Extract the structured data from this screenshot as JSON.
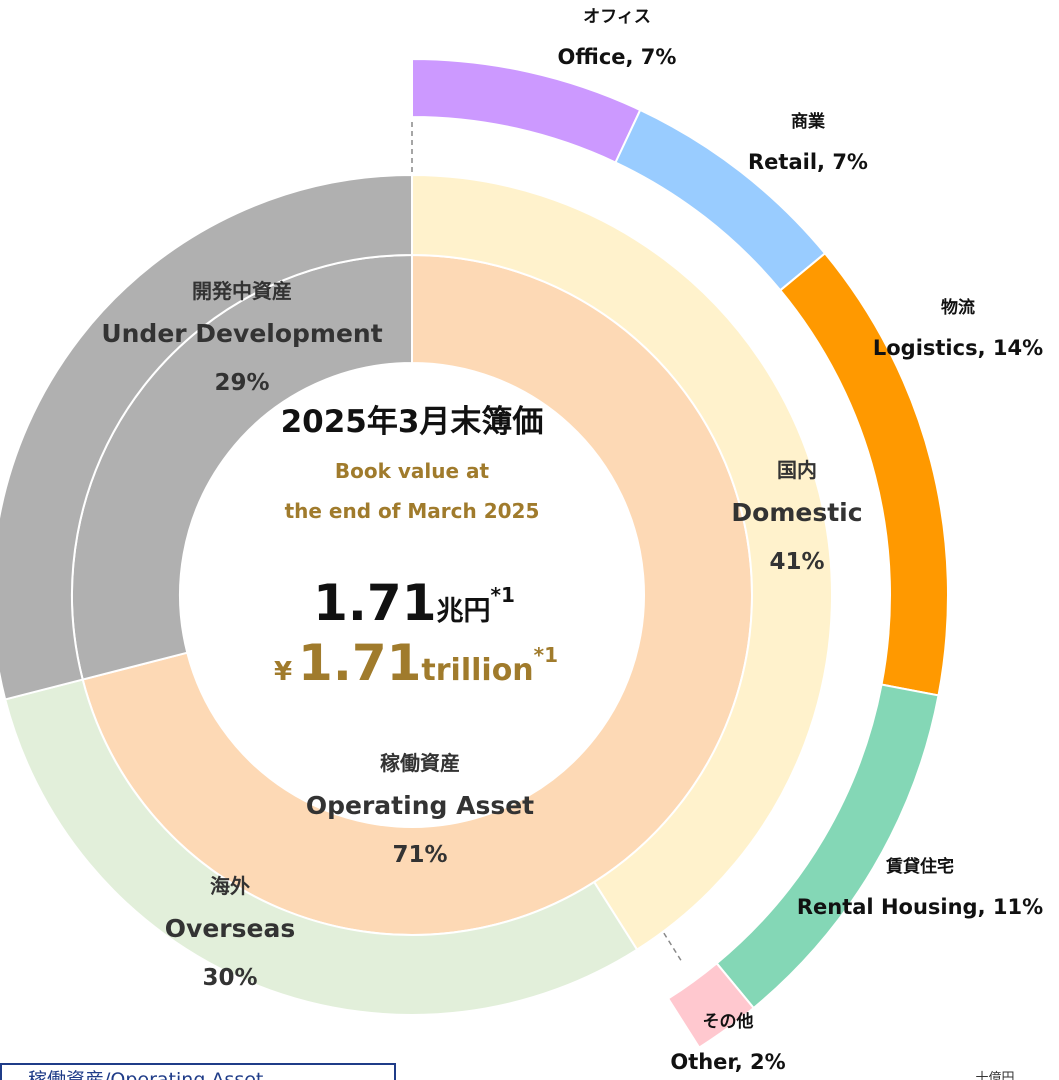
{
  "chart_data": {
    "type": "donut",
    "title": "2025年3月末簿価",
    "subtitle": [
      "Book value at",
      "the end of March 2025"
    ],
    "amount_ja": {
      "value": "1.71",
      "unit": "兆円",
      "note": "*1"
    },
    "amount_en": {
      "currency": "¥",
      "value": "1.71",
      "unit": "trillion",
      "note": "*1"
    },
    "rings": [
      {
        "names_ja": [
          "稼働資産",
          "開発中資産"
        ],
        "names_en": [
          "Operating Asset",
          "Under Development"
        ],
        "values": [
          71,
          29
        ],
        "value_labels": [
          "71%",
          "29%"
        ],
        "colors": [
          "#fdd9b5",
          "#b0b0b0"
        ]
      },
      {
        "names_ja": [
          "国内",
          "海外",
          null
        ],
        "names_en": [
          "Domestic",
          "Overseas",
          null
        ],
        "values": [
          41,
          30,
          29
        ],
        "value_labels": [
          "41%",
          "30%",
          null
        ],
        "colors": [
          "#fff2cc",
          "#e2efda",
          "#b0b0b0"
        ]
      },
      {
        "names_ja": [
          "オフィス",
          "商業",
          "物流",
          "賃貸住宅",
          "その他"
        ],
        "values": [
          7,
          7,
          14,
          11,
          2
        ],
        "value_labels": [
          "Office, 7%",
          "Retail, 7%",
          "Logistics, 14%",
          "Rental Housing, 11%",
          "Other, 2%"
        ],
        "colors": [
          "#cc99ff",
          "#99ccff",
          "#ff9900",
          "#84d7b6",
          "#ffc8cf"
        ]
      }
    ],
    "legend_box": "稼働資産/Operating Asset",
    "unit": "十億円"
  }
}
